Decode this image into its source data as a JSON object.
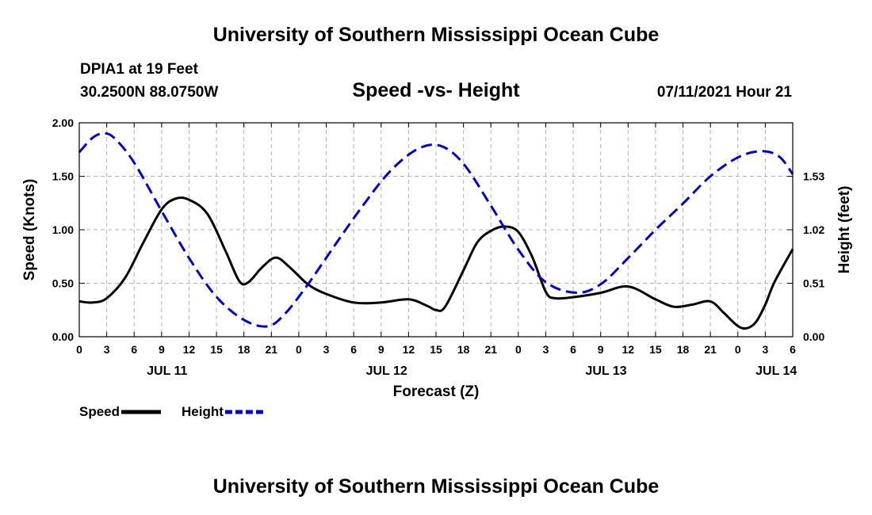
{
  "header": {
    "title": "University of Southern Mississippi Ocean Cube",
    "station": "DPIA1 at 19 Feet",
    "coords": "30.2500N  88.0750W",
    "timestamp": "07/11/2021 Hour 21"
  },
  "footer": {
    "title": "University of Southern Mississippi Ocean Cube"
  },
  "chart_data": {
    "type": "line",
    "title": "Speed -vs- Height",
    "xlabel": "Forecast (Z)",
    "ylabel": "Speed (Knots)",
    "y2label": "Height (feet)",
    "xlim": [
      0,
      78
    ],
    "ylim": [
      0,
      2.0
    ],
    "y2lim": [
      0,
      2.04
    ],
    "grid": true,
    "x_ticks": [
      {
        "x": 0,
        "label": "0"
      },
      {
        "x": 3,
        "label": "3"
      },
      {
        "x": 6,
        "label": "6"
      },
      {
        "x": 9,
        "label": "9"
      },
      {
        "x": 12,
        "label": "12"
      },
      {
        "x": 15,
        "label": "15"
      },
      {
        "x": 18,
        "label": "18"
      },
      {
        "x": 21,
        "label": "21"
      },
      {
        "x": 24,
        "label": "0"
      },
      {
        "x": 27,
        "label": "3"
      },
      {
        "x": 30,
        "label": "6"
      },
      {
        "x": 33,
        "label": "9"
      },
      {
        "x": 36,
        "label": "12"
      },
      {
        "x": 39,
        "label": "15"
      },
      {
        "x": 42,
        "label": "18"
      },
      {
        "x": 45,
        "label": "21"
      },
      {
        "x": 48,
        "label": "0"
      },
      {
        "x": 51,
        "label": "3"
      },
      {
        "x": 54,
        "label": "6"
      },
      {
        "x": 57,
        "label": "9"
      },
      {
        "x": 60,
        "label": "12"
      },
      {
        "x": 63,
        "label": "15"
      },
      {
        "x": 66,
        "label": "18"
      },
      {
        "x": 69,
        "label": "21"
      },
      {
        "x": 72,
        "label": "0"
      },
      {
        "x": 75,
        "label": "3"
      },
      {
        "x": 78,
        "label": "6"
      }
    ],
    "day_labels": [
      {
        "x": 9.6,
        "label": "JUL 11"
      },
      {
        "x": 33.6,
        "label": "JUL 12"
      },
      {
        "x": 57.6,
        "label": "JUL 13"
      },
      {
        "x": 76.2,
        "label": "JUL 14"
      }
    ],
    "y_ticks": [
      "0.00",
      "0.50",
      "1.00",
      "1.50",
      "2.00"
    ],
    "y2_ticks": [
      {
        "value": 0.0,
        "label": "0.00"
      },
      {
        "value": 0.51,
        "label": "0.51"
      },
      {
        "value": 1.02,
        "label": "1.02"
      },
      {
        "value": 1.53,
        "label": "1.53"
      }
    ],
    "series": [
      {
        "name": "Speed",
        "axis": "left",
        "color": "#000000",
        "dash": false,
        "x": [
          0,
          1.5,
          3,
          5,
          7,
          9,
          10.5,
          12,
          14,
          16,
          17.5,
          18.5,
          20,
          21.5,
          23,
          25,
          27,
          30,
          33,
          36,
          38,
          39,
          40,
          42,
          43.5,
          45,
          46.5,
          48,
          49.5,
          51,
          52,
          54,
          57,
          60,
          63,
          65,
          67,
          69,
          70.5,
          72,
          73,
          74,
          75,
          76,
          78
        ],
        "y": [
          0.33,
          0.32,
          0.36,
          0.55,
          0.88,
          1.19,
          1.29,
          1.28,
          1.15,
          0.8,
          0.52,
          0.51,
          0.65,
          0.74,
          0.65,
          0.49,
          0.4,
          0.32,
          0.32,
          0.35,
          0.29,
          0.25,
          0.28,
          0.62,
          0.88,
          0.99,
          1.03,
          0.98,
          0.75,
          0.42,
          0.36,
          0.37,
          0.41,
          0.47,
          0.35,
          0.28,
          0.3,
          0.33,
          0.22,
          0.1,
          0.08,
          0.14,
          0.3,
          0.51,
          0.82
        ]
      },
      {
        "name": "Height",
        "axis": "right",
        "color": "#0000cc",
        "dash": true,
        "x": [
          0,
          1.5,
          2.8,
          4,
          6,
          9,
          12,
          15,
          18,
          20.6,
          22.5,
          25,
          28,
          31,
          34,
          37,
          39.5,
          42,
          45,
          48,
          51,
          54.3,
          57,
          60,
          63,
          66,
          69,
          72,
          74.5,
          76.5,
          78
        ],
        "y": [
          1.76,
          1.9,
          1.94,
          1.88,
          1.66,
          1.2,
          0.75,
          0.38,
          0.16,
          0.1,
          0.22,
          0.5,
          0.88,
          1.25,
          1.58,
          1.79,
          1.82,
          1.65,
          1.25,
          0.83,
          0.52,
          0.42,
          0.5,
          0.75,
          1.02,
          1.27,
          1.53,
          1.71,
          1.77,
          1.72,
          1.55
        ]
      }
    ],
    "legend": {
      "placement": "bottom-left",
      "items": [
        {
          "label": "Speed",
          "color": "#000000",
          "dash": false
        },
        {
          "label": "Height",
          "color": "#0000cc",
          "dash": true
        }
      ]
    }
  }
}
